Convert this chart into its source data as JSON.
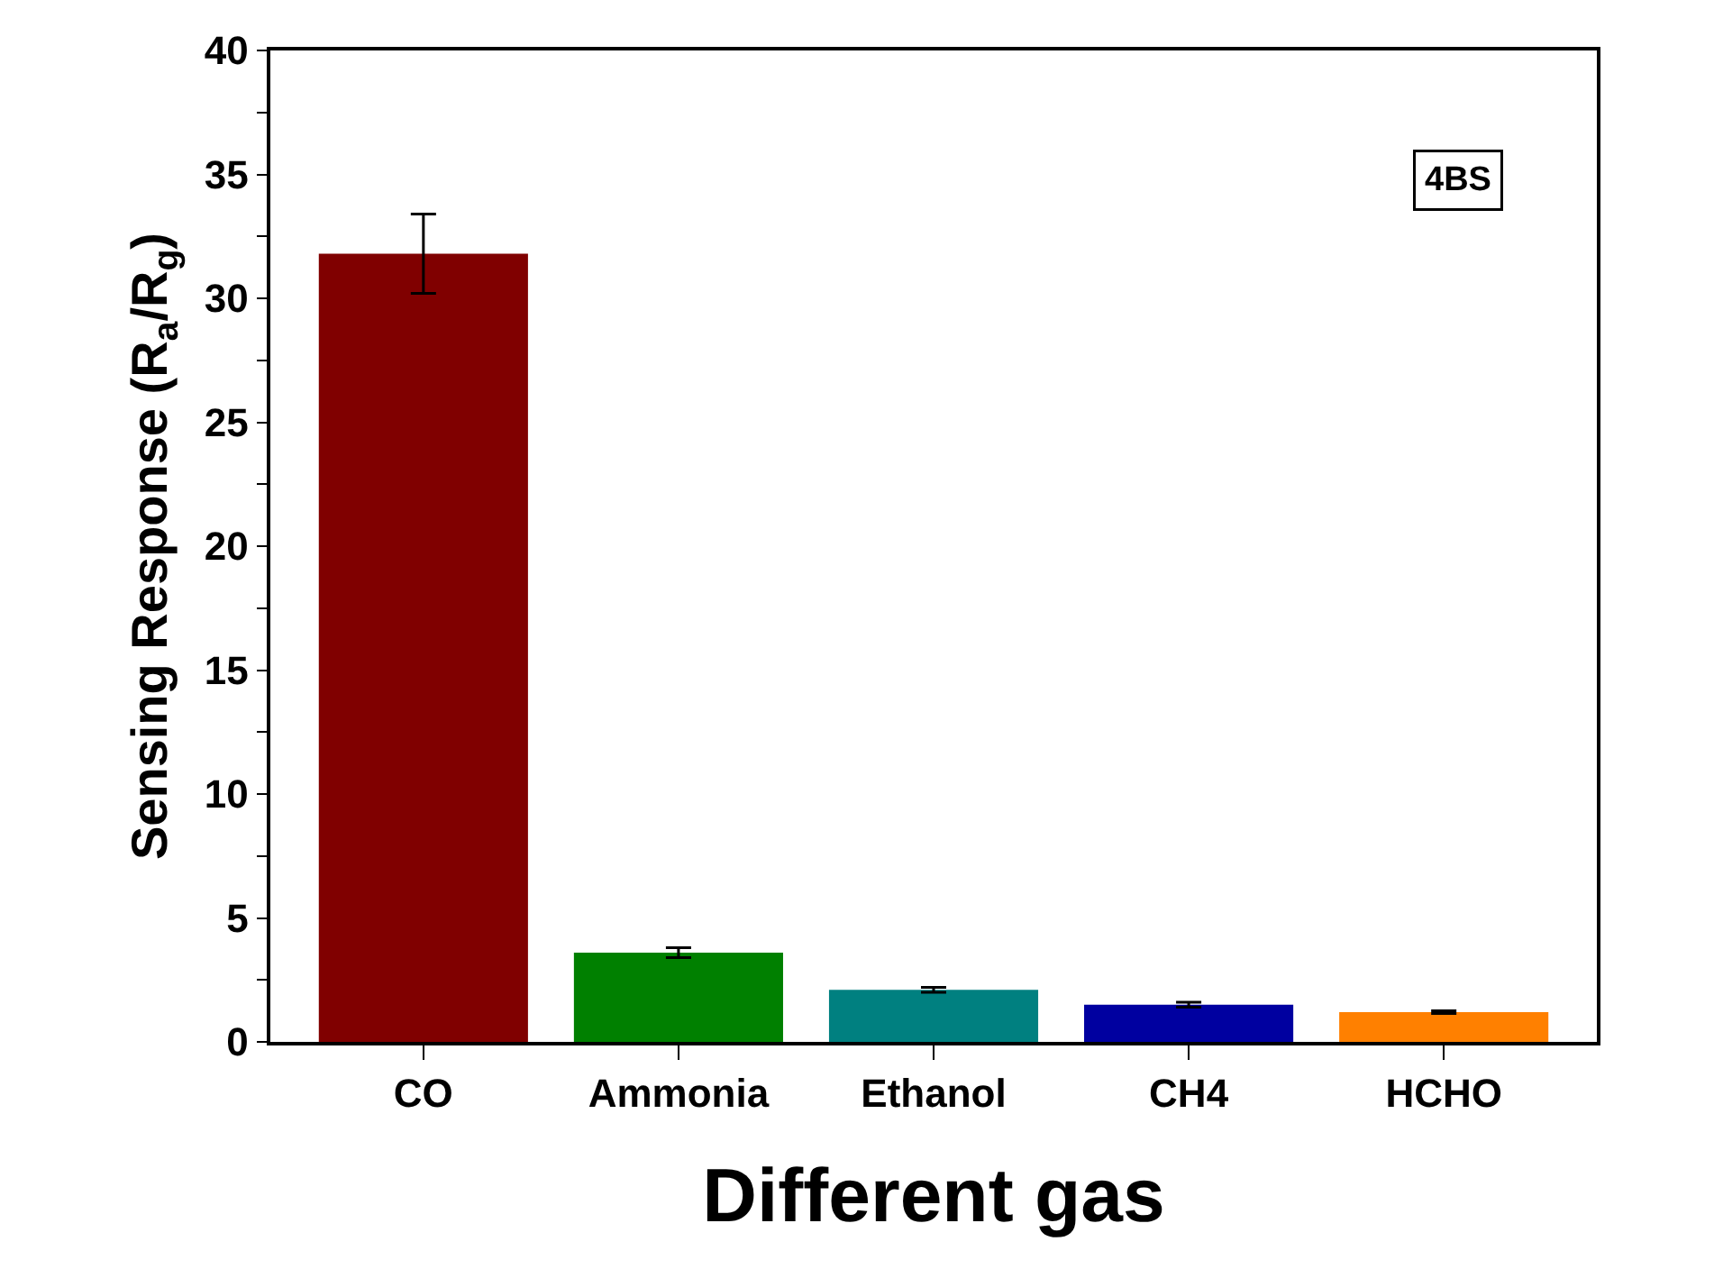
{
  "chart_data": {
    "type": "bar",
    "xlabel": "Different gas",
    "ylabel": "Sensing Response (R$_{a}$/R$_{g}$)",
    "categories": [
      "CO",
      "Ammonia",
      "Ethanol",
      "CH4",
      "HCHO"
    ],
    "values": [
      31.8,
      3.6,
      2.1,
      1.5,
      1.2
    ],
    "errors": [
      1.6,
      0.2,
      0.1,
      0.1,
      0.05
    ],
    "colors": [
      "#800000",
      "#008000",
      "#008080",
      "#0000a0",
      "#ff8000"
    ],
    "ylim": [
      0,
      40
    ],
    "yticks": [
      0,
      {
        "value": 2.5,
        "label": null
      },
      5,
      {
        "value": 7.5,
        "label": null
      },
      10,
      {
        "value": 12.5,
        "label": null
      },
      15,
      {
        "value": 17.5,
        "label": null
      },
      20,
      {
        "value": 22.5,
        "label": null
      },
      25,
      {
        "value": 27.5,
        "label": null
      },
      30,
      {
        "value": 32.5,
        "label": null
      },
      35,
      {
        "value": 37.5,
        "label": null
      },
      40
    ],
    "annotations": [
      "4BS"
    ]
  }
}
